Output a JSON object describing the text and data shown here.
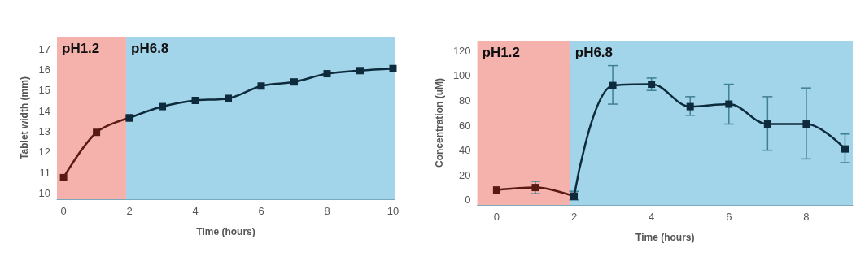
{
  "chart_data": [
    {
      "type": "line",
      "xlabel": "Time (hours)",
      "ylabel": "Tablet width (mm)",
      "xlim": [
        -0.2,
        10.05
      ],
      "xticks": [
        0,
        2,
        4,
        6,
        8,
        10
      ],
      "ylim": [
        9.7,
        17.6
      ],
      "yticks": [
        10,
        11,
        12,
        13,
        14,
        15,
        16,
        17
      ],
      "marker": "square",
      "bands": [
        {
          "axis": "x",
          "from": -0.2,
          "to": 1.9,
          "label": "pH1.2",
          "color": "#f5b1ab"
        },
        {
          "axis": "x",
          "from": 1.9,
          "to": 10.05,
          "label": "pH6.8",
          "color": "#a3d5ea"
        }
      ],
      "series": [
        {
          "color": "#5a1a14",
          "x": [
            0,
            1,
            2
          ],
          "values": [
            10.75,
            12.95,
            13.65
          ]
        },
        {
          "color": "#0e2b3d",
          "x": [
            2,
            3,
            4,
            5,
            6,
            7,
            8,
            9,
            10
          ],
          "values": [
            13.65,
            14.2,
            14.5,
            14.6,
            15.2,
            15.4,
            15.8,
            15.95,
            16.05
          ]
        }
      ]
    },
    {
      "type": "line",
      "xlabel": "Time (hours)",
      "ylabel": "Concentration (uM)",
      "xlim": [
        -0.5,
        9.2
      ],
      "xticks": [
        0,
        2,
        4,
        6,
        8
      ],
      "ylim": [
        -4,
        128
      ],
      "yticks": [
        0,
        20,
        40,
        60,
        80,
        100,
        120
      ],
      "marker": "square",
      "bands": [
        {
          "axis": "x",
          "from": -0.5,
          "to": 1.9,
          "label": "pH1.2",
          "color": "#f5b1ab"
        },
        {
          "axis": "x",
          "from": 1.9,
          "to": 9.2,
          "label": "pH6.8",
          "color": "#a3d5ea"
        }
      ],
      "series": [
        {
          "color": "#5a1a14",
          "x": [
            0,
            1,
            2
          ],
          "values": [
            8,
            10,
            3
          ],
          "errors": [
            null,
            [
              5,
              15
            ],
            null
          ]
        },
        {
          "color": "#0e2b3d",
          "x": [
            2,
            3,
            4,
            5,
            6,
            7,
            8,
            9
          ],
          "values": [
            3,
            92,
            93,
            75,
            77,
            61,
            61,
            41
          ],
          "errors": [
            [
              0,
              7
            ],
            [
              77,
              108
            ],
            [
              88,
              98
            ],
            [
              68,
              83
            ],
            [
              61,
              93
            ],
            [
              40,
              83
            ],
            [
              33,
              90
            ],
            [
              30,
              53
            ]
          ]
        }
      ]
    }
  ]
}
